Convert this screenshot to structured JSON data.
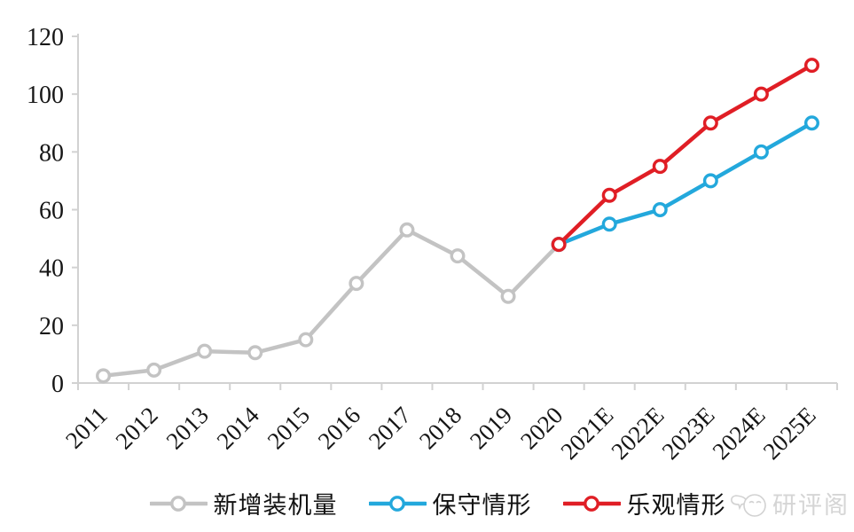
{
  "chart_data": {
    "type": "line",
    "title": "",
    "xlabel": "",
    "ylabel": "",
    "x_categories": [
      "2011",
      "2012",
      "2013",
      "2014",
      "2015",
      "2016",
      "2017",
      "2018",
      "2019",
      "2020",
      "2021E",
      "2022E",
      "2023E",
      "2024E",
      "2025E"
    ],
    "ylim": [
      0,
      120
    ],
    "yticks": [
      0,
      20,
      40,
      60,
      80,
      100,
      120
    ],
    "grid": false,
    "legend_position": "bottom",
    "axis_color": "#d2d2d2",
    "series": [
      {
        "name": "新增装机量",
        "color": "#c3c3c3",
        "values": [
          2.5,
          4.5,
          11,
          10.5,
          15,
          34.5,
          53,
          44,
          30,
          48,
          null,
          null,
          null,
          null,
          null
        ]
      },
      {
        "name": "保守情形",
        "color": "#23a8dc",
        "values": [
          null,
          null,
          null,
          null,
          null,
          null,
          null,
          null,
          null,
          48,
          55,
          60,
          70,
          80,
          90
        ]
      },
      {
        "name": "乐观情形",
        "color": "#e01e25",
        "values": [
          null,
          null,
          null,
          null,
          null,
          null,
          null,
          null,
          null,
          48,
          65,
          75,
          90,
          100,
          110
        ]
      }
    ]
  },
  "watermark": {
    "text": "研评阁",
    "icon": "doodle-face-logo"
  }
}
